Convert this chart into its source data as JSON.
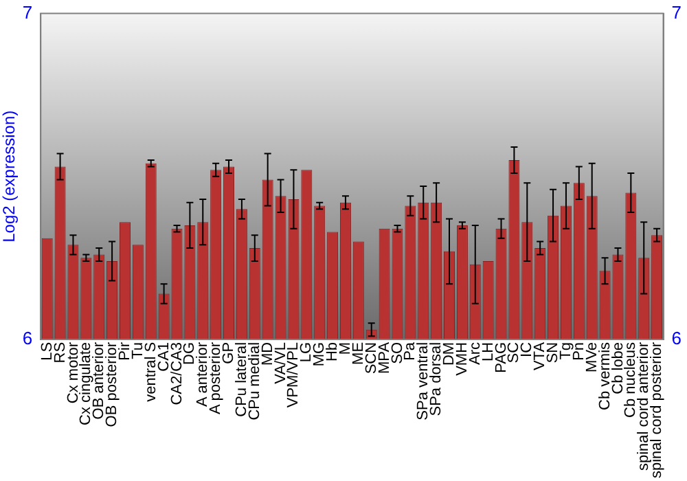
{
  "chart_data": {
    "type": "bar",
    "ylabel": "Log2 (expression)",
    "categories": [
      "LS",
      "RS",
      "Cx motor",
      "Cx cingulate",
      "OB anterior",
      "OB posterior",
      "Pir",
      "Tu",
      "ventral S",
      "CA1",
      "CA2/CA3",
      "DG",
      "A anterior",
      "A posterior",
      "GP",
      "CPu lateral",
      "CPu medial",
      "MD",
      "VA/VL",
      "VPM/VPL",
      "LG",
      "MG",
      "Hb",
      "M",
      "ME",
      "SCN",
      "MPA",
      "SO",
      "Pa",
      "SPa ventral",
      "SPa dorsal",
      "DM",
      "VMH",
      "Arc",
      "LH",
      "PAG",
      "SC",
      "IC",
      "VTA",
      "SN",
      "Tg",
      "Pn",
      "MVe",
      "Cb vermis",
      "Cb lobe",
      "Cb nucleus",
      "spinal cord anterior",
      "spinal cord posterior"
    ],
    "values": [
      6.31,
      6.53,
      6.29,
      6.25,
      6.26,
      6.24,
      6.36,
      6.29,
      6.54,
      6.14,
      6.34,
      6.35,
      6.36,
      6.52,
      6.53,
      6.4,
      6.28,
      6.49,
      6.44,
      6.43,
      6.52,
      6.41,
      6.33,
      6.42,
      6.3,
      6.03,
      6.34,
      6.34,
      6.41,
      6.42,
      6.42,
      6.27,
      6.35,
      6.23,
      6.24,
      6.34,
      6.55,
      6.36,
      6.28,
      6.38,
      6.41,
      6.48,
      6.44,
      6.21,
      6.26,
      6.45,
      6.25,
      6.32
    ],
    "errors": [
      null,
      0.04,
      0.03,
      0.01,
      0.02,
      0.06,
      null,
      null,
      0.01,
      0.03,
      0.01,
      0.07,
      0.07,
      0.02,
      0.02,
      0.03,
      0.04,
      0.08,
      0.05,
      0.09,
      null,
      0.01,
      null,
      0.02,
      null,
      0.02,
      null,
      0.01,
      0.03,
      0.05,
      0.06,
      0.1,
      0.01,
      0.12,
      null,
      0.03,
      0.04,
      0.12,
      0.02,
      0.08,
      0.07,
      0.05,
      0.1,
      0.04,
      0.02,
      0.06,
      0.11,
      0.02
    ],
    "color": "#b83232",
    "ylim": [
      6,
      7
    ],
    "yticks": [
      6,
      7
    ],
    "y2lim": [
      6,
      7
    ],
    "y2ticks": [
      6,
      7
    ],
    "grid": false,
    "legend": false
  }
}
